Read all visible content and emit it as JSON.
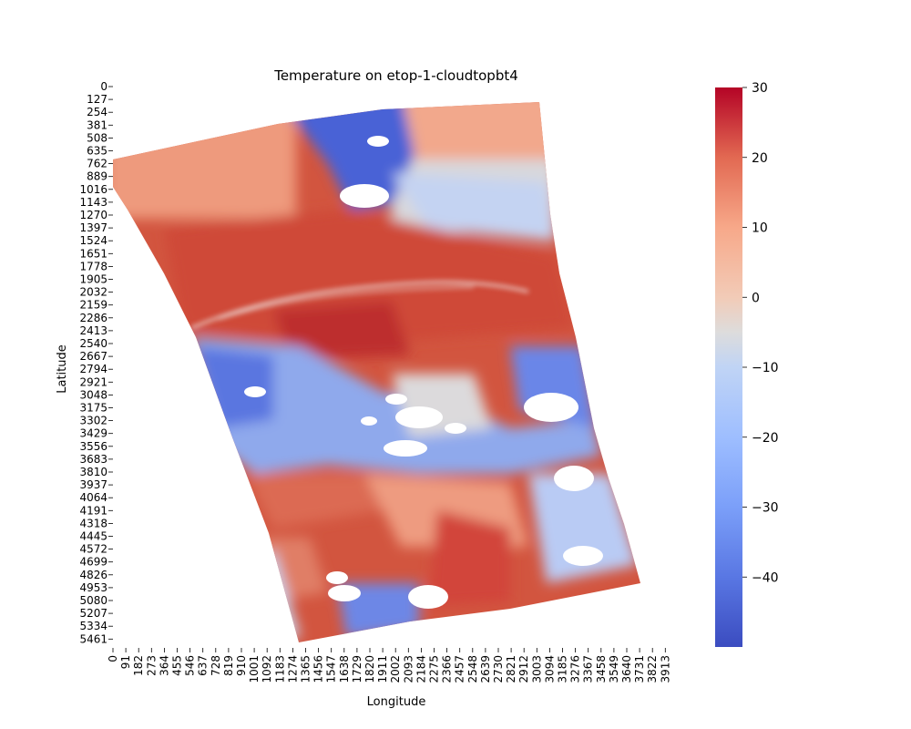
{
  "chart_data": {
    "type": "heatmap",
    "title": "Temperature on etop-1-cloudtopbt4",
    "xlabel": "Longitude",
    "ylabel": "Latitude",
    "x_tick_labels": [
      "0",
      "91",
      "182",
      "273",
      "364",
      "455",
      "546",
      "637",
      "728",
      "819",
      "910",
      "1001",
      "1092",
      "1183",
      "1274",
      "1365",
      "1456",
      "1547",
      "1638",
      "1729",
      "1820",
      "1911",
      "2002",
      "2093",
      "2184",
      "2275",
      "2366",
      "2457",
      "2548",
      "2639",
      "2730",
      "2821",
      "2912",
      "3003",
      "3094",
      "3185",
      "3276",
      "3367",
      "3458",
      "3549",
      "3640",
      "3731",
      "3822",
      "3913"
    ],
    "y_tick_labels": [
      "0",
      "127",
      "254",
      "381",
      "508",
      "635",
      "762",
      "889",
      "1016",
      "1143",
      "1270",
      "1397",
      "1524",
      "1651",
      "1778",
      "1905",
      "2032",
      "2159",
      "2286",
      "2413",
      "2540",
      "2667",
      "2794",
      "2921",
      "3048",
      "3175",
      "3302",
      "3429",
      "3556",
      "3683",
      "3810",
      "3937",
      "4064",
      "4191",
      "4318",
      "4445",
      "4572",
      "4699",
      "4826",
      "4953",
      "5080",
      "5207",
      "5334",
      "5461"
    ],
    "colorbar": {
      "colormap": "coolwarm",
      "range": [
        -50,
        30
      ],
      "tick_labels": [
        "30",
        "20",
        "10",
        "0",
        "−10",
        "−20",
        "−30",
        "−40"
      ],
      "tick_values": [
        30,
        20,
        10,
        0,
        -10,
        -20,
        -30,
        -40
      ]
    },
    "colors": {
      "cold": "#3b4cc0",
      "neutral": "#dddcdc",
      "warm": "#b40426"
    }
  }
}
